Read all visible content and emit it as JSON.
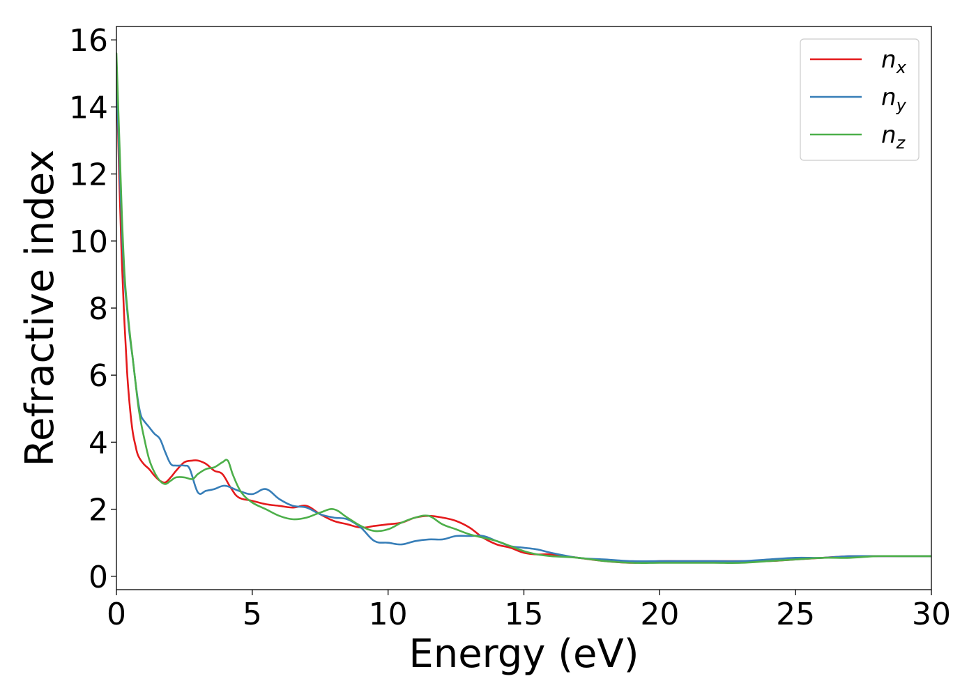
{
  "chart_data": {
    "type": "line",
    "xlabel": "Energy (eV)",
    "ylabel": "Refractive index",
    "xlim": [
      0,
      30
    ],
    "ylim": [
      -0.4,
      16.4
    ],
    "xticks": [
      0,
      5,
      10,
      15,
      20,
      25,
      30
    ],
    "xtick_labels": [
      "0",
      "5",
      "10",
      "15",
      "20",
      "25",
      "30"
    ],
    "yticks": [
      0,
      2,
      4,
      6,
      8,
      10,
      12,
      14,
      16
    ],
    "ytick_labels": [
      "0",
      "2",
      "4",
      "6",
      "8",
      "10",
      "12",
      "14",
      "16"
    ],
    "grid": false,
    "legend_position": "top-right",
    "series": [
      {
        "name": "n",
        "subscript": "x",
        "color": "#e41a1c",
        "x": [
          0.0,
          0.1,
          0.2,
          0.3,
          0.4,
          0.5,
          0.6,
          0.7,
          0.8,
          1.0,
          1.2,
          1.4,
          1.6,
          1.8,
          2.0,
          2.2,
          2.5,
          2.8,
          3.0,
          3.3,
          3.6,
          3.9,
          4.2,
          4.5,
          5.0,
          5.5,
          6.0,
          6.5,
          7.0,
          7.5,
          8.0,
          8.5,
          9.0,
          9.5,
          10.0,
          10.5,
          11.0,
          11.5,
          12.0,
          12.5,
          13.0,
          13.5,
          14.0,
          14.5,
          15.0,
          15.5,
          16.0,
          17.0,
          18.0,
          19.0,
          20.0,
          21.0,
          22.0,
          23.0,
          24.0,
          25.0,
          26.0,
          27.0,
          28.0,
          29.0,
          30.0
        ],
        "values": [
          15.2,
          12.0,
          9.4,
          7.5,
          6.0,
          5.0,
          4.3,
          3.9,
          3.6,
          3.35,
          3.2,
          3.0,
          2.85,
          2.8,
          2.95,
          3.15,
          3.4,
          3.45,
          3.45,
          3.35,
          3.15,
          3.05,
          2.65,
          2.35,
          2.25,
          2.15,
          2.1,
          2.05,
          2.1,
          1.85,
          1.65,
          1.55,
          1.45,
          1.5,
          1.55,
          1.6,
          1.75,
          1.8,
          1.75,
          1.65,
          1.45,
          1.15,
          0.95,
          0.85,
          0.7,
          0.65,
          0.65,
          0.55,
          0.45,
          0.4,
          0.45,
          0.45,
          0.45,
          0.45,
          0.45,
          0.5,
          0.55,
          0.6,
          0.6,
          0.6,
          0.6
        ]
      },
      {
        "name": "n",
        "subscript": "y",
        "color": "#377eb8",
        "x": [
          0.0,
          0.1,
          0.2,
          0.3,
          0.4,
          0.5,
          0.6,
          0.7,
          0.8,
          0.9,
          1.0,
          1.2,
          1.4,
          1.6,
          1.8,
          2.0,
          2.2,
          2.5,
          2.7,
          3.0,
          3.3,
          3.6,
          4.0,
          4.5,
          5.0,
          5.5,
          6.0,
          6.5,
          7.0,
          7.5,
          8.0,
          8.5,
          9.0,
          9.5,
          10.0,
          10.5,
          11.0,
          11.5,
          12.0,
          12.5,
          13.0,
          13.5,
          14.0,
          14.5,
          15.0,
          15.5,
          16.0,
          17.0,
          18.0,
          19.0,
          20.0,
          21.0,
          22.0,
          23.0,
          24.0,
          25.0,
          26.0,
          27.0,
          28.0,
          29.0,
          30.0
        ],
        "values": [
          15.0,
          12.6,
          10.4,
          8.8,
          7.9,
          7.1,
          6.5,
          5.8,
          5.2,
          4.8,
          4.65,
          4.45,
          4.25,
          4.1,
          3.7,
          3.35,
          3.3,
          3.3,
          3.2,
          2.5,
          2.55,
          2.6,
          2.7,
          2.55,
          2.45,
          2.6,
          2.3,
          2.1,
          2.05,
          1.85,
          1.75,
          1.7,
          1.45,
          1.05,
          1.0,
          0.95,
          1.05,
          1.1,
          1.1,
          1.2,
          1.2,
          1.2,
          1.05,
          0.9,
          0.85,
          0.8,
          0.7,
          0.55,
          0.5,
          0.45,
          0.45,
          0.45,
          0.45,
          0.45,
          0.5,
          0.55,
          0.55,
          0.6,
          0.6,
          0.6,
          0.6
        ]
      },
      {
        "name": "n",
        "subscript": "z",
        "color": "#4daf4a",
        "x": [
          0.0,
          0.1,
          0.2,
          0.3,
          0.4,
          0.5,
          0.6,
          0.7,
          0.8,
          0.9,
          1.0,
          1.2,
          1.4,
          1.6,
          1.8,
          2.0,
          2.2,
          2.5,
          2.8,
          3.0,
          3.3,
          3.6,
          3.9,
          4.1,
          4.3,
          4.6,
          5.0,
          5.5,
          6.0,
          6.5,
          7.0,
          7.5,
          8.0,
          8.5,
          9.0,
          9.5,
          10.0,
          10.5,
          11.0,
          11.5,
          12.0,
          12.5,
          13.0,
          13.5,
          14.0,
          14.5,
          15.0,
          15.5,
          16.0,
          17.0,
          18.0,
          19.0,
          20.0,
          21.0,
          22.0,
          23.0,
          24.0,
          25.0,
          26.0,
          27.0,
          28.0,
          29.0,
          30.0
        ],
        "values": [
          15.6,
          13.2,
          10.8,
          9.0,
          8.0,
          7.2,
          6.5,
          5.8,
          5.1,
          4.6,
          4.2,
          3.5,
          3.1,
          2.85,
          2.75,
          2.85,
          2.95,
          2.95,
          2.9,
          3.05,
          3.2,
          3.25,
          3.4,
          3.45,
          3.0,
          2.5,
          2.2,
          2.0,
          1.8,
          1.7,
          1.75,
          1.9,
          2.0,
          1.75,
          1.5,
          1.35,
          1.4,
          1.6,
          1.75,
          1.8,
          1.55,
          1.4,
          1.25,
          1.15,
          1.05,
          0.9,
          0.75,
          0.65,
          0.6,
          0.55,
          0.45,
          0.4,
          0.4,
          0.4,
          0.4,
          0.4,
          0.45,
          0.5,
          0.55,
          0.55,
          0.6,
          0.6,
          0.6
        ]
      }
    ]
  }
}
